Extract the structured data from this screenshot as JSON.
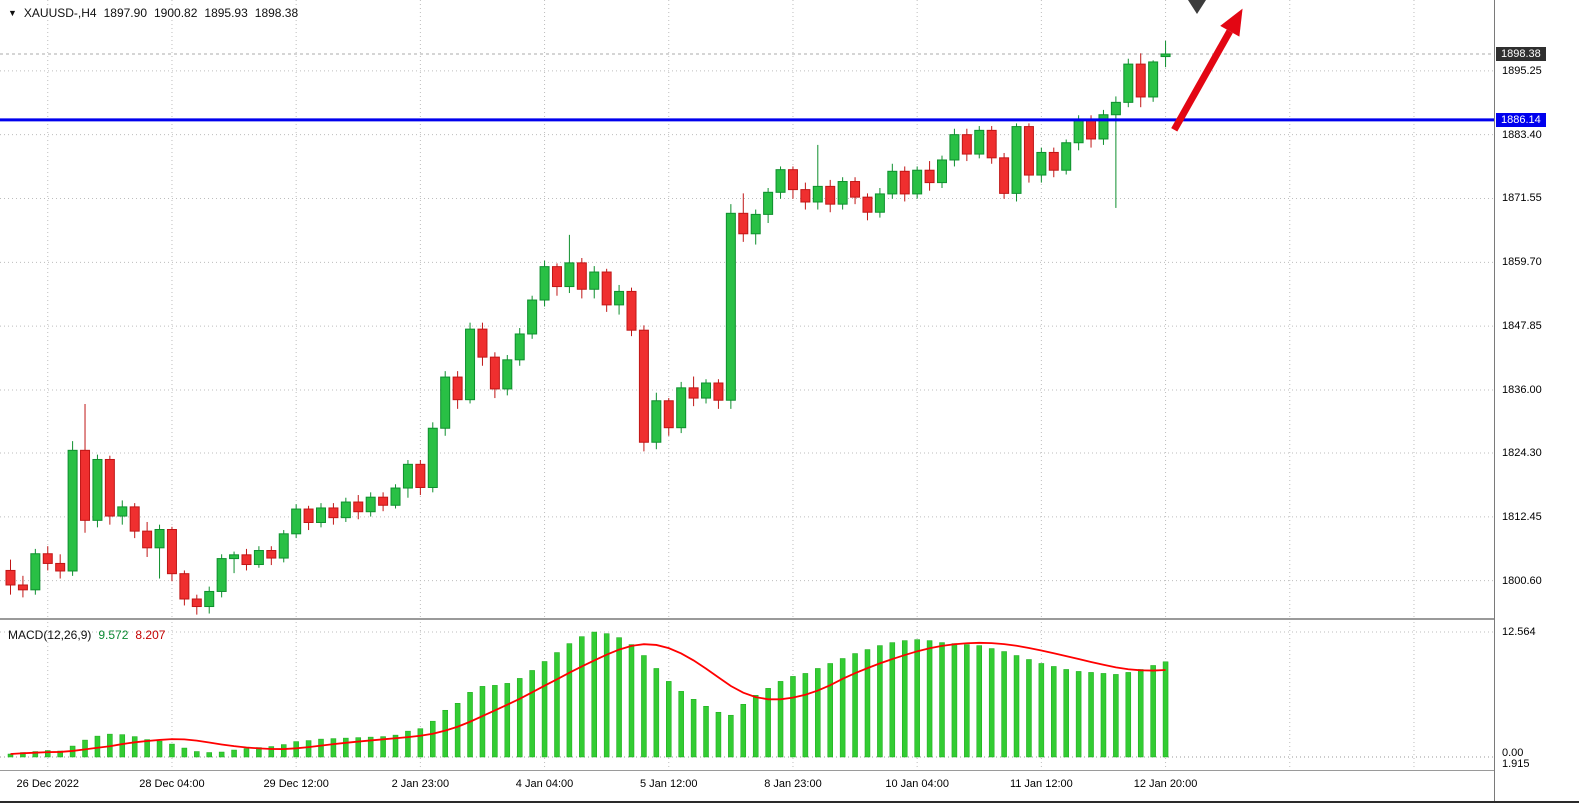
{
  "window": {
    "ohlc_header": {
      "symbol_tf": "XAUUSD-,H4",
      "open": "1897.90",
      "high": "1900.82",
      "low": "1895.93",
      "close": "1898.38"
    }
  },
  "macd_panel": {
    "label": "MACD(12,26,9)",
    "main": "9.572",
    "signal": "8.207"
  },
  "colors": {
    "bull": "#29c045",
    "bull_border": "#0e8f2e",
    "bear": "#ef2f2f",
    "bear_border": "#c01616",
    "grid": "#bdbdbd",
    "hline_blue": "#0000ee",
    "price_tag_bg": "#2f2f2f",
    "hist": "#33cc33",
    "hist_border": "#18a818",
    "signal_line": "#ff0000",
    "arrow": "#e30613",
    "cursor": "#3c3c3c",
    "axis_text": "#000000"
  },
  "chart_data": {
    "type": "candlestick",
    "title": "XAUUSD- H4 gold chart with MACD",
    "price_range": {
      "top": 1908.4,
      "bottom": 1793.3
    },
    "price_ticks": [
      1895.25,
      1883.4,
      1871.55,
      1859.7,
      1847.85,
      1836.0,
      1824.3,
      1812.45,
      1800.6
    ],
    "current_price": 1898.38,
    "support_line_price": 1886.14,
    "time_labels": [
      {
        "bar": 3,
        "text": "26 Dec 2022"
      },
      {
        "bar": 13,
        "text": "28 Dec 04:00"
      },
      {
        "bar": 23,
        "text": "29 Dec 12:00"
      },
      {
        "bar": 33,
        "text": "2 Jan 23:00"
      },
      {
        "bar": 43,
        "text": "4 Jan 04:00"
      },
      {
        "bar": 53,
        "text": "5 Jan 12:00"
      },
      {
        "bar": 63,
        "text": "8 Jan 23:00"
      },
      {
        "bar": 73,
        "text": "10 Jan 04:00"
      },
      {
        "bar": 83,
        "text": "11 Jan 12:00"
      },
      {
        "bar": 93,
        "text": "12 Jan 20:00"
      }
    ],
    "extra_grid_bars": [
      103,
      113
    ],
    "candles": [
      [
        1802.5,
        1804.5,
        1798.0,
        1799.8
      ],
      [
        1799.8,
        1801.5,
        1797.5,
        1798.9
      ],
      [
        1798.9,
        1806.5,
        1798.0,
        1805.6
      ],
      [
        1805.6,
        1807.0,
        1802.5,
        1803.8
      ],
      [
        1803.8,
        1805.5,
        1801.0,
        1802.4
      ],
      [
        1802.4,
        1826.5,
        1801.5,
        1824.8
      ],
      [
        1824.8,
        1833.4,
        1809.5,
        1811.8
      ],
      [
        1811.8,
        1824.0,
        1810.5,
        1823.1
      ],
      [
        1823.1,
        1823.8,
        1811.0,
        1812.6
      ],
      [
        1812.6,
        1815.5,
        1811.0,
        1814.3
      ],
      [
        1814.3,
        1815.0,
        1808.5,
        1809.8
      ],
      [
        1809.8,
        1811.5,
        1805.0,
        1806.7
      ],
      [
        1806.7,
        1811.0,
        1801.0,
        1810.1
      ],
      [
        1810.1,
        1810.6,
        1800.5,
        1801.9
      ],
      [
        1801.9,
        1802.5,
        1796.0,
        1797.2
      ],
      [
        1797.2,
        1798.0,
        1794.3,
        1795.8
      ],
      [
        1795.8,
        1799.5,
        1794.5,
        1798.6
      ],
      [
        1798.6,
        1805.5,
        1797.5,
        1804.7
      ],
      [
        1804.7,
        1806.0,
        1802.0,
        1805.4
      ],
      [
        1805.4,
        1806.5,
        1802.5,
        1803.6
      ],
      [
        1803.6,
        1807.0,
        1803.0,
        1806.2
      ],
      [
        1806.2,
        1807.0,
        1803.5,
        1804.8
      ],
      [
        1804.8,
        1810.0,
        1804.0,
        1809.3
      ],
      [
        1809.3,
        1814.8,
        1808.5,
        1813.9
      ],
      [
        1813.9,
        1814.5,
        1810.0,
        1811.4
      ],
      [
        1811.4,
        1815.0,
        1810.5,
        1814.1
      ],
      [
        1814.1,
        1815.0,
        1811.0,
        1812.3
      ],
      [
        1812.3,
        1816.0,
        1811.5,
        1815.2
      ],
      [
        1815.2,
        1816.5,
        1812.0,
        1813.4
      ],
      [
        1813.4,
        1817.0,
        1812.5,
        1816.1
      ],
      [
        1816.1,
        1817.0,
        1813.5,
        1814.6
      ],
      [
        1814.6,
        1818.5,
        1814.0,
        1817.8
      ],
      [
        1817.8,
        1823.0,
        1816.0,
        1822.2
      ],
      [
        1822.2,
        1823.0,
        1816.5,
        1817.9
      ],
      [
        1817.9,
        1830.0,
        1817.0,
        1828.9
      ],
      [
        1828.9,
        1839.5,
        1827.5,
        1838.4
      ],
      [
        1838.4,
        1839.5,
        1832.5,
        1834.2
      ],
      [
        1834.2,
        1848.5,
        1833.5,
        1847.3
      ],
      [
        1847.3,
        1848.5,
        1840.5,
        1842.1
      ],
      [
        1842.1,
        1843.0,
        1834.5,
        1836.2
      ],
      [
        1836.2,
        1842.5,
        1835.0,
        1841.6
      ],
      [
        1841.6,
        1847.5,
        1840.5,
        1846.4
      ],
      [
        1846.4,
        1853.5,
        1845.5,
        1852.7
      ],
      [
        1852.7,
        1860.0,
        1851.5,
        1858.9
      ],
      [
        1858.9,
        1859.5,
        1853.5,
        1855.2
      ],
      [
        1855.2,
        1864.8,
        1854.0,
        1859.6
      ],
      [
        1859.6,
        1860.5,
        1853.0,
        1854.7
      ],
      [
        1854.7,
        1859.0,
        1853.0,
        1857.9
      ],
      [
        1857.9,
        1858.5,
        1850.5,
        1851.8
      ],
      [
        1851.8,
        1855.5,
        1850.0,
        1854.3
      ],
      [
        1854.3,
        1855.0,
        1846.0,
        1847.1
      ],
      [
        1847.1,
        1848.0,
        1824.6,
        1826.3
      ],
      [
        1826.3,
        1835.5,
        1825.0,
        1834.0
      ],
      [
        1834.0,
        1834.5,
        1827.5,
        1829.0
      ],
      [
        1829.0,
        1837.5,
        1828.0,
        1836.4
      ],
      [
        1836.4,
        1838.5,
        1833.0,
        1834.5
      ],
      [
        1834.5,
        1838.0,
        1833.5,
        1837.3
      ],
      [
        1837.3,
        1838.0,
        1832.5,
        1834.1
      ],
      [
        1834.1,
        1870.5,
        1832.5,
        1868.8
      ],
      [
        1868.8,
        1872.5,
        1863.5,
        1865.0
      ],
      [
        1865.0,
        1869.5,
        1863.0,
        1868.6
      ],
      [
        1868.6,
        1873.5,
        1867.0,
        1872.7
      ],
      [
        1872.7,
        1877.5,
        1871.5,
        1876.9
      ],
      [
        1876.9,
        1877.5,
        1871.5,
        1873.2
      ],
      [
        1873.2,
        1874.5,
        1869.5,
        1870.9
      ],
      [
        1870.9,
        1881.5,
        1869.5,
        1873.8
      ],
      [
        1873.8,
        1875.0,
        1869.0,
        1870.5
      ],
      [
        1870.5,
        1875.5,
        1869.5,
        1874.7
      ],
      [
        1874.7,
        1875.5,
        1870.5,
        1871.8
      ],
      [
        1871.8,
        1872.5,
        1867.5,
        1869.0
      ],
      [
        1869.0,
        1873.5,
        1868.0,
        1872.4
      ],
      [
        1872.4,
        1878.0,
        1871.5,
        1876.6
      ],
      [
        1876.6,
        1877.5,
        1871.0,
        1872.4
      ],
      [
        1872.4,
        1877.5,
        1871.5,
        1876.8
      ],
      [
        1876.8,
        1878.5,
        1873.0,
        1874.5
      ],
      [
        1874.5,
        1879.5,
        1873.5,
        1878.7
      ],
      [
        1878.7,
        1884.5,
        1877.5,
        1883.4
      ],
      [
        1883.4,
        1884.5,
        1878.5,
        1879.8
      ],
      [
        1879.8,
        1885.0,
        1879.0,
        1884.2
      ],
      [
        1884.2,
        1885.0,
        1878.0,
        1879.1
      ],
      [
        1879.1,
        1880.0,
        1871.5,
        1872.5
      ],
      [
        1872.5,
        1885.5,
        1871.0,
        1884.9
      ],
      [
        1884.9,
        1885.5,
        1874.5,
        1875.9
      ],
      [
        1875.9,
        1881.0,
        1874.5,
        1880.1
      ],
      [
        1880.1,
        1881.0,
        1875.5,
        1876.8
      ],
      [
        1876.8,
        1882.5,
        1876.0,
        1881.9
      ],
      [
        1881.9,
        1887.0,
        1880.5,
        1886.2
      ],
      [
        1886.2,
        1887.0,
        1881.0,
        1882.6
      ],
      [
        1882.6,
        1888.0,
        1881.5,
        1887.1
      ],
      [
        1887.1,
        1890.5,
        1869.8,
        1889.4
      ],
      [
        1889.4,
        1897.5,
        1888.5,
        1896.5
      ],
      [
        1896.5,
        1898.5,
        1888.5,
        1890.4
      ],
      [
        1890.4,
        1897.2,
        1889.5,
        1896.9
      ],
      [
        1897.9,
        1900.82,
        1895.93,
        1898.38
      ]
    ],
    "macd": {
      "params": "12,26,9",
      "current_main": 9.572,
      "current_signal": 8.207,
      "axis_top": 12.564,
      "axis_labels": [
        "12.564",
        "0.00",
        "1.915"
      ],
      "values": [
        0.3,
        0.45,
        0.55,
        0.65,
        0.6,
        1.1,
        1.7,
        2.1,
        2.3,
        2.25,
        2.05,
        1.75,
        1.6,
        1.3,
        0.9,
        0.55,
        0.45,
        0.5,
        0.7,
        0.85,
        0.95,
        1.05,
        1.25,
        1.55,
        1.65,
        1.8,
        1.85,
        1.9,
        1.95,
        2.0,
        2.05,
        2.2,
        2.6,
        2.85,
        3.6,
        4.7,
        5.4,
        6.5,
        7.1,
        7.2,
        7.4,
        7.9,
        8.7,
        9.6,
        10.5,
        11.4,
        12.1,
        12.56,
        12.4,
        12.0,
        11.3,
        10.2,
        8.9,
        7.6,
        6.6,
        5.8,
        5.1,
        4.5,
        4.2,
        5.3,
        6.2,
        6.9,
        7.6,
        8.1,
        8.4,
        8.9,
        9.4,
        9.9,
        10.4,
        10.8,
        11.2,
        11.5,
        11.7,
        11.8,
        11.7,
        11.5,
        11.4,
        11.3,
        11.2,
        10.9,
        10.6,
        10.2,
        9.8,
        9.4,
        9.1,
        8.8,
        8.6,
        8.5,
        8.4,
        8.3,
        8.5,
        8.8,
        9.2,
        9.572
      ]
    },
    "arrow": {
      "from_bar": 93.7,
      "from_price": 1884.3,
      "to_bar": 99.2,
      "to_price": 1906.8
    }
  }
}
